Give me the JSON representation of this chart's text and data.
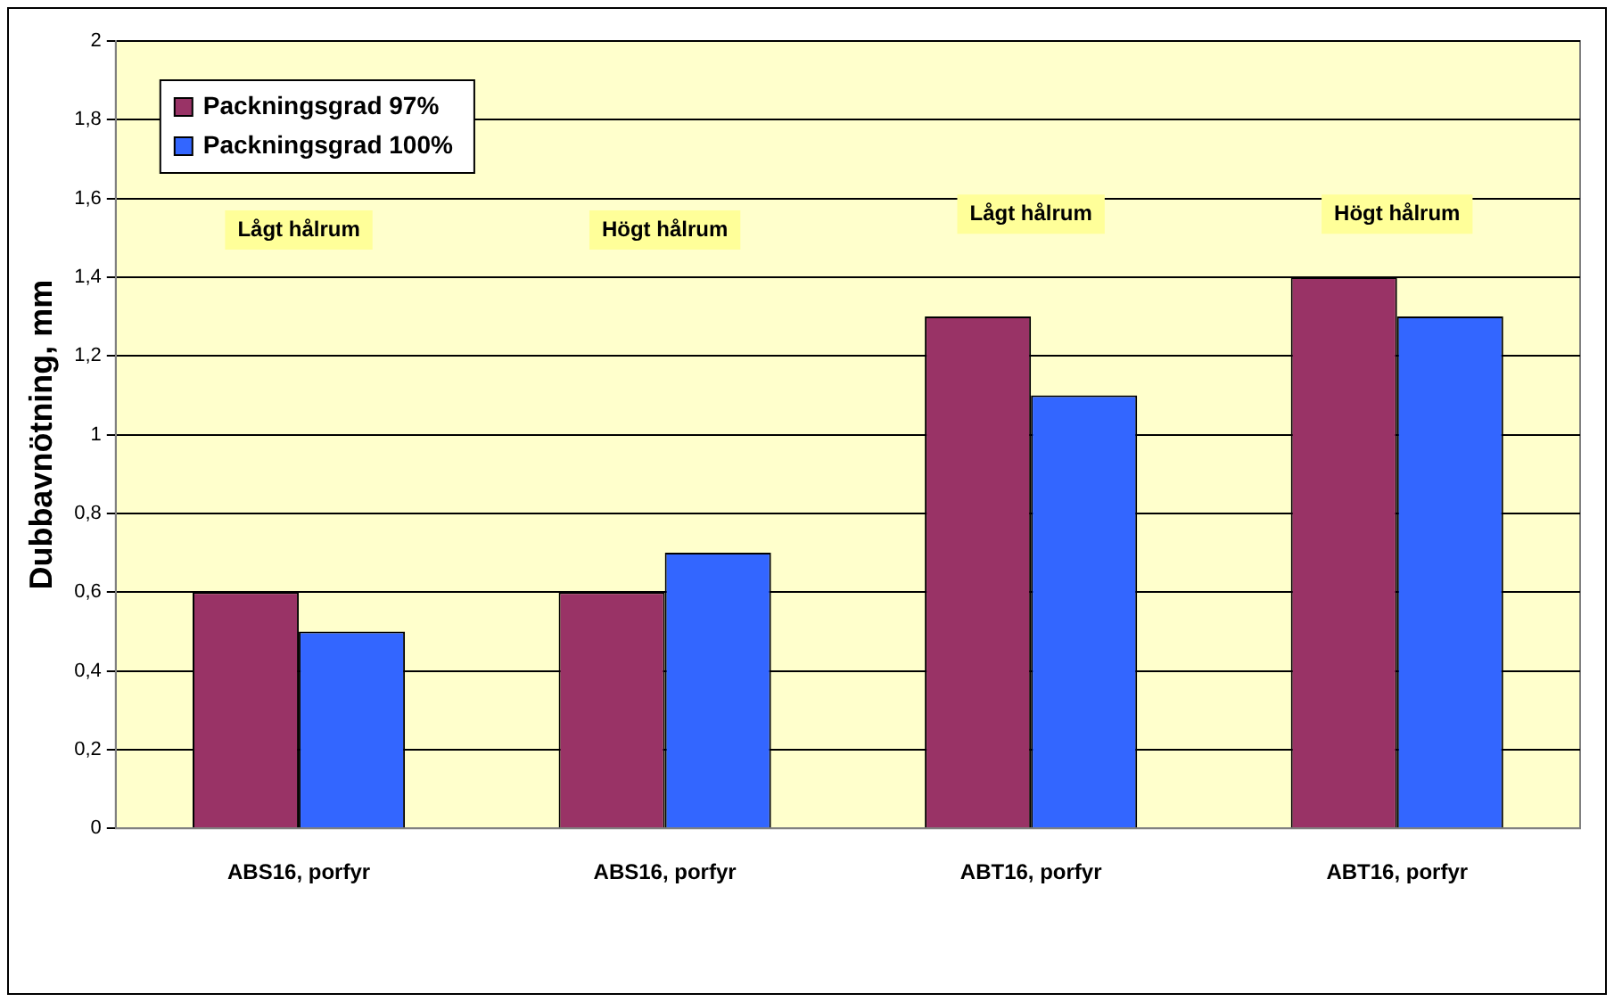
{
  "chart_data": {
    "type": "bar",
    "ylabel": "Dubbavnötning, mm",
    "categories": [
      "ABS16, porfyr",
      "ABS16, porfyr",
      "ABT16, porfyr",
      "ABT16, porfyr"
    ],
    "series": [
      {
        "name": "Packningsgrad 97%",
        "color": "#993366",
        "values": [
          0.6,
          0.6,
          1.3,
          1.4
        ]
      },
      {
        "name": "Packningsgrad 100%",
        "color": "#3366ff",
        "values": [
          0.5,
          0.7,
          1.1,
          1.3
        ]
      }
    ],
    "ylim": [
      0,
      2
    ],
    "yticks": [
      0,
      {
        "value": 0.2,
        "label": "0,2"
      },
      {
        "value": 0.4,
        "label": "0,4"
      },
      {
        "value": 0.6,
        "label": "0,6"
      },
      {
        "value": 0.8,
        "label": "0,8"
      },
      1,
      {
        "value": 1.2,
        "label": "1,2"
      },
      {
        "value": 1.4,
        "label": "1,4"
      },
      {
        "value": 1.6,
        "label": "1,6"
      },
      {
        "value": 1.8,
        "label": "1,8"
      },
      2
    ],
    "grid": "y",
    "legend": "top left",
    "annotations": [
      "Lågt hålrum",
      "Högt hålrum",
      "Lågt hålrum",
      "Högt hålrum"
    ]
  }
}
